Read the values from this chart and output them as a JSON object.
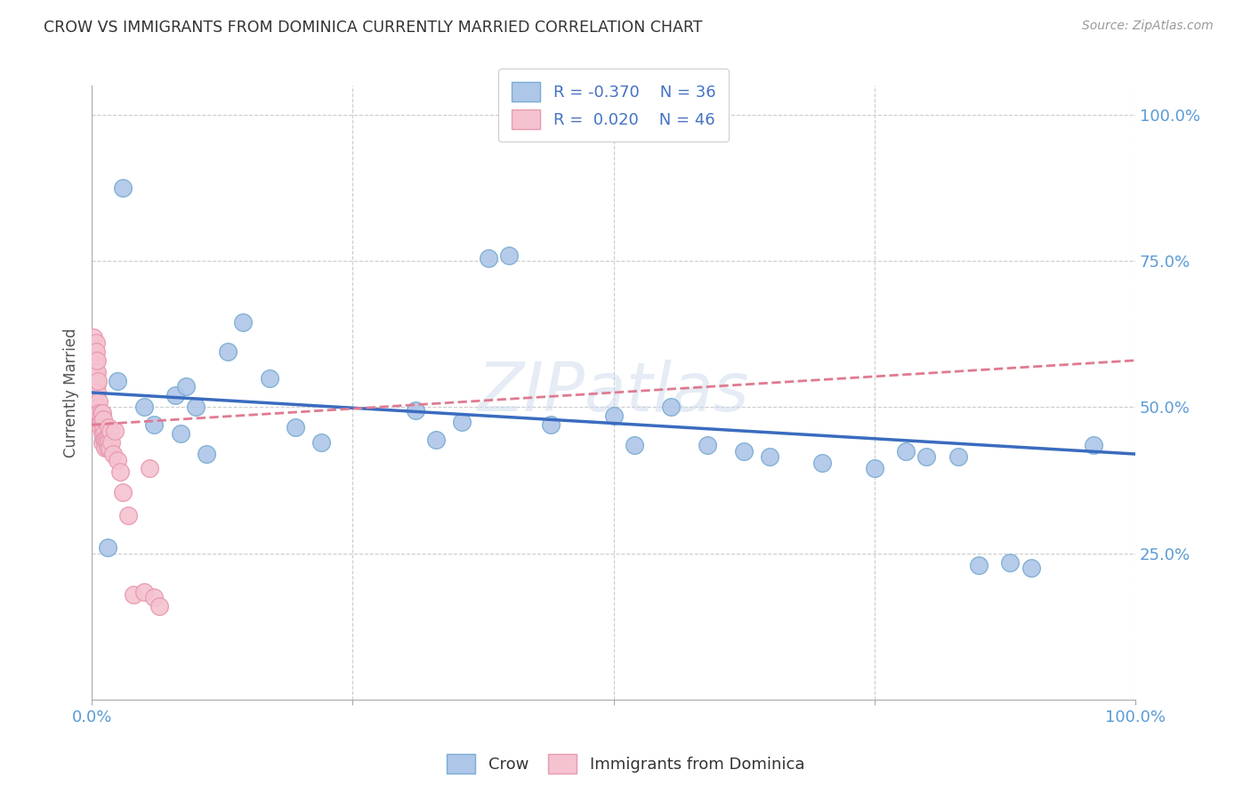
{
  "title": "CROW VS IMMIGRANTS FROM DOMINICA CURRENTLY MARRIED CORRELATION CHART",
  "source": "Source: ZipAtlas.com",
  "ylabel": "Currently Married",
  "crow_R": -0.37,
  "crow_N": 36,
  "dom_R": 0.02,
  "dom_N": 46,
  "crow_color": "#aec6e8",
  "crow_edge_color": "#7aadd4",
  "dom_color": "#f5c2d0",
  "dom_edge_color": "#e89ab0",
  "crow_line_color": "#3a6bbf",
  "dom_line_color": "#e07a90",
  "watermark": "ZIPatlas",
  "crow_x": [
    0.015,
    0.025,
    0.03,
    0.05,
    0.06,
    0.08,
    0.085,
    0.09,
    0.1,
    0.11,
    0.13,
    0.145,
    0.17,
    0.195,
    0.22,
    0.31,
    0.33,
    0.355,
    0.38,
    0.4,
    0.44,
    0.5,
    0.52,
    0.555,
    0.59,
    0.625,
    0.65,
    0.7,
    0.75,
    0.78,
    0.8,
    0.83,
    0.85,
    0.88,
    0.9,
    0.96
  ],
  "crow_y": [
    0.26,
    0.545,
    0.875,
    0.5,
    0.47,
    0.52,
    0.455,
    0.535,
    0.5,
    0.42,
    0.595,
    0.645,
    0.55,
    0.465,
    0.44,
    0.495,
    0.445,
    0.475,
    0.755,
    0.76,
    0.47,
    0.485,
    0.435,
    0.5,
    0.435,
    0.425,
    0.415,
    0.405,
    0.395,
    0.425,
    0.415,
    0.415,
    0.23,
    0.235,
    0.225,
    0.435
  ],
  "dom_x": [
    0.002,
    0.002,
    0.003,
    0.003,
    0.004,
    0.004,
    0.005,
    0.005,
    0.005,
    0.005,
    0.006,
    0.006,
    0.007,
    0.007,
    0.008,
    0.008,
    0.009,
    0.009,
    0.01,
    0.01,
    0.01,
    0.011,
    0.011,
    0.012,
    0.012,
    0.013,
    0.013,
    0.014,
    0.014,
    0.015,
    0.016,
    0.016,
    0.017,
    0.018,
    0.019,
    0.02,
    0.022,
    0.025,
    0.027,
    0.03,
    0.035,
    0.04,
    0.05,
    0.055,
    0.06,
    0.065
  ],
  "dom_y": [
    0.62,
    0.6,
    0.58,
    0.56,
    0.61,
    0.595,
    0.56,
    0.54,
    0.525,
    0.58,
    0.545,
    0.5,
    0.51,
    0.49,
    0.475,
    0.465,
    0.49,
    0.475,
    0.455,
    0.49,
    0.44,
    0.465,
    0.48,
    0.455,
    0.445,
    0.445,
    0.43,
    0.445,
    0.44,
    0.43,
    0.465,
    0.44,
    0.43,
    0.46,
    0.44,
    0.42,
    0.46,
    0.41,
    0.39,
    0.355,
    0.315,
    0.18,
    0.185,
    0.395,
    0.175,
    0.16
  ],
  "xlim": [
    0.0,
    1.0
  ],
  "ylim": [
    0.0,
    1.05
  ],
  "y_ticks": [
    0.25,
    0.5,
    0.75,
    1.0
  ],
  "x_ticks": [
    0.0,
    1.0
  ]
}
